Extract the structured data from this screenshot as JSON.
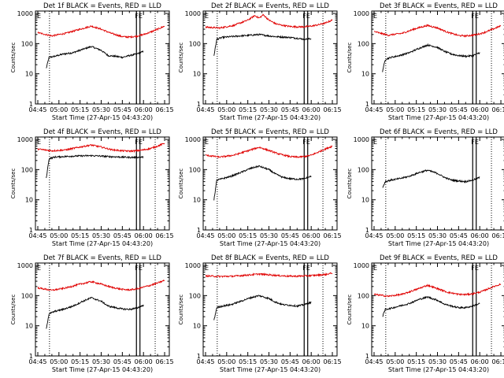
{
  "x_ticks": [
    "04:45",
    "05:00",
    "05:15",
    "05:30",
    "05:45",
    "06:00",
    "06:15"
  ],
  "y_ticks": [
    "1",
    "10",
    "100",
    "1000"
  ],
  "xlabel": "Start Time (27-Apr-15 04:43:20)",
  "ylabel": "Counts/sec",
  "colors": {
    "events": "#000000",
    "lld": "#e00000"
  },
  "chart_data": [
    {
      "type": "line",
      "title": "Det 1f BLACK = Events, RED = LLD",
      "marker_labels": [
        "E",
        "FE"
      ],
      "xlim_min": [
        -1.67,
        93.33
      ],
      "ylim": [
        1,
        1200
      ],
      "log_y": true,
      "vlines_dotted_min": [
        8.3,
        83.3
      ],
      "vlines_solid_min": [
        70,
        72.5
      ],
      "series": [
        {
          "x": [
            6,
            8,
            12,
            18,
            25,
            32,
            38,
            45,
            50,
            55,
            60,
            65,
            70,
            75
          ],
          "y": [
            15,
            35,
            38,
            45,
            50,
            65,
            80,
            60,
            40,
            38,
            35,
            40,
            45,
            55
          ]
        },
        {
          "x": [
            0,
            10,
            20,
            30,
            38,
            45,
            52,
            60,
            65,
            70,
            75,
            80,
            85,
            90
          ],
          "y": [
            230,
            180,
            220,
            300,
            380,
            300,
            220,
            170,
            165,
            175,
            200,
            240,
            300,
            380
          ]
        }
      ]
    },
    {
      "type": "line",
      "title": "Det 2f BLACK = Events, RED = LLD",
      "marker_labels": [
        "E",
        "FE"
      ],
      "xlim_min": [
        -1.67,
        93.33
      ],
      "ylim": [
        1,
        1200
      ],
      "log_y": true,
      "vlines_dotted_min": [
        8.3,
        83.3
      ],
      "vlines_solid_min": [
        70,
        72.5
      ],
      "series": [
        {
          "x": [
            6,
            8,
            12,
            18,
            25,
            32,
            38,
            45,
            50,
            55,
            60,
            65,
            70,
            75
          ],
          "y": [
            40,
            140,
            160,
            170,
            180,
            190,
            200,
            180,
            170,
            165,
            160,
            150,
            140,
            145
          ]
        },
        {
          "x": [
            0,
            10,
            20,
            30,
            35,
            38,
            41,
            45,
            50,
            55,
            60,
            65,
            70,
            75,
            80,
            85,
            90
          ],
          "y": [
            350,
            330,
            400,
            600,
            850,
            700,
            900,
            600,
            450,
            400,
            370,
            360,
            360,
            380,
            420,
            480,
            600
          ]
        }
      ]
    },
    {
      "type": "line",
      "title": "Det 3f BLACK = Events, RED = LLD",
      "marker_labels": [
        "E",
        "FE"
      ],
      "xlim_min": [
        -1.67,
        93.33
      ],
      "ylim": [
        1,
        1200
      ],
      "log_y": true,
      "vlines_dotted_min": [
        8.3,
        83.3
      ],
      "vlines_solid_min": [
        70,
        72.5
      ],
      "series": [
        {
          "x": [
            6,
            8,
            12,
            18,
            25,
            32,
            38,
            45,
            50,
            55,
            60,
            65,
            70,
            75
          ],
          "y": [
            12,
            30,
            35,
            40,
            50,
            70,
            90,
            75,
            55,
            45,
            40,
            38,
            40,
            50
          ]
        },
        {
          "x": [
            0,
            10,
            20,
            30,
            38,
            45,
            52,
            60,
            65,
            70,
            75,
            80,
            85,
            90
          ],
          "y": [
            250,
            190,
            220,
            320,
            400,
            330,
            240,
            185,
            180,
            190,
            210,
            250,
            310,
            390
          ]
        }
      ]
    },
    {
      "type": "line",
      "title": "Det 4f BLACK = Events, RED = LLD",
      "marker_labels": [
        "E",
        "FE"
      ],
      "xlim_min": [
        -1.67,
        93.33
      ],
      "ylim": [
        1,
        1200
      ],
      "log_y": true,
      "vlines_dotted_min": [
        8.3,
        83.3
      ],
      "vlines_solid_min": [
        70,
        72.5
      ],
      "series": [
        {
          "x": [
            6,
            8,
            12,
            18,
            25,
            32,
            38,
            45,
            50,
            55,
            60,
            65,
            70,
            75
          ],
          "y": [
            50,
            230,
            260,
            270,
            280,
            285,
            290,
            280,
            270,
            265,
            260,
            255,
            255,
            260
          ]
        },
        {
          "x": [
            0,
            10,
            20,
            30,
            38,
            45,
            52,
            60,
            65,
            70,
            75,
            80,
            85,
            90
          ],
          "y": [
            480,
            420,
            450,
            560,
            650,
            560,
            460,
            420,
            410,
            420,
            450,
            500,
            600,
            750
          ]
        }
      ]
    },
    {
      "type": "line",
      "title": "Det 5f BLACK = Events, RED = LLD",
      "marker_labels": [
        "E",
        "FE"
      ],
      "xlim_min": [
        -1.67,
        93.33
      ],
      "ylim": [
        1,
        1200
      ],
      "log_y": true,
      "vlines_dotted_min": [
        8.3,
        83.3
      ],
      "vlines_solid_min": [
        70,
        72.5
      ],
      "series": [
        {
          "x": [
            6,
            8,
            12,
            18,
            25,
            32,
            38,
            45,
            50,
            55,
            60,
            65,
            70,
            75
          ],
          "y": [
            10,
            45,
            50,
            60,
            80,
            110,
            130,
            100,
            70,
            55,
            50,
            48,
            50,
            60
          ]
        },
        {
          "x": [
            0,
            10,
            20,
            30,
            38,
            45,
            52,
            60,
            65,
            70,
            75,
            80,
            85,
            90
          ],
          "y": [
            300,
            260,
            300,
            420,
            550,
            430,
            330,
            270,
            260,
            270,
            300,
            380,
            480,
            600
          ]
        }
      ]
    },
    {
      "type": "line",
      "title": "Det 6f BLACK = Events, RED = LLD",
      "marker_labels": [
        "E",
        "FE"
      ],
      "xlim_min": [
        -1.67,
        93.33
      ],
      "ylim": [
        1,
        1200
      ],
      "log_y": true,
      "vlines_dotted_min": [
        8.3,
        83.3
      ],
      "vlines_solid_min": [
        70,
        72.5
      ],
      "series": [
        {
          "x": [
            6,
            8,
            12,
            18,
            25,
            32,
            38,
            45,
            50,
            55,
            60,
            65,
            70,
            75
          ],
          "y": [
            25,
            40,
            45,
            50,
            60,
            80,
            95,
            75,
            55,
            45,
            42,
            40,
            45,
            55
          ]
        }
      ]
    },
    {
      "type": "line",
      "title": "Det 7f BLACK = Events, RED = LLD",
      "marker_labels": [
        "E",
        "FE"
      ],
      "xlim_min": [
        -1.67,
        93.33
      ],
      "ylim": [
        1,
        1200
      ],
      "log_y": true,
      "vlines_dotted_min": [
        8.3,
        83.3
      ],
      "vlines_solid_min": [
        70,
        72.5
      ],
      "series": [
        {
          "x": [
            6,
            8,
            12,
            18,
            25,
            32,
            38,
            45,
            50,
            55,
            60,
            65,
            70,
            75
          ],
          "y": [
            8,
            25,
            30,
            35,
            45,
            65,
            85,
            65,
            45,
            40,
            36,
            35,
            38,
            48
          ]
        },
        {
          "x": [
            0,
            10,
            20,
            30,
            38,
            45,
            52,
            60,
            65,
            70,
            75,
            80,
            85,
            90
          ],
          "y": [
            180,
            150,
            180,
            240,
            290,
            240,
            190,
            160,
            155,
            165,
            190,
            220,
            260,
            320
          ]
        }
      ]
    },
    {
      "type": "line",
      "title": "Det 8f BLACK = Events, RED = LLD",
      "marker_labels": [
        "E",
        "FE"
      ],
      "xlim_min": [
        -1.67,
        93.33
      ],
      "ylim": [
        1,
        1200
      ],
      "log_y": true,
      "vlines_dotted_min": [
        8.3,
        83.3
      ],
      "vlines_solid_min": [
        70,
        72.5
      ],
      "series": [
        {
          "x": [
            6,
            8,
            12,
            18,
            25,
            32,
            38,
            45,
            50,
            55,
            60,
            65,
            70,
            75
          ],
          "y": [
            15,
            40,
            45,
            50,
            65,
            85,
            100,
            80,
            60,
            50,
            48,
            45,
            50,
            60
          ]
        },
        {
          "x": [
            0,
            10,
            20,
            30,
            38,
            45,
            52,
            60,
            65,
            70,
            75,
            80,
            85,
            90
          ],
          "y": [
            450,
            430,
            440,
            480,
            520,
            490,
            460,
            440,
            440,
            450,
            460,
            480,
            500,
            560
          ]
        }
      ]
    },
    {
      "type": "line",
      "title": "Det 9f BLACK = Events, RED = LLD",
      "marker_labels": [
        "E",
        "FE"
      ],
      "xlim_min": [
        -1.67,
        93.33
      ],
      "ylim": [
        1,
        1200
      ],
      "log_y": true,
      "vlines_dotted_min": [
        8.3,
        83.3
      ],
      "vlines_solid_min": [
        70,
        72.5
      ],
      "series": [
        {
          "x": [
            6,
            8,
            12,
            18,
            25,
            32,
            38,
            45,
            50,
            55,
            60,
            65,
            70,
            75
          ],
          "y": [
            20,
            35,
            38,
            45,
            55,
            75,
            90,
            70,
            52,
            45,
            40,
            40,
            45,
            55
          ]
        },
        {
          "x": [
            0,
            10,
            20,
            30,
            38,
            45,
            52,
            60,
            65,
            70,
            75,
            80,
            85,
            90
          ],
          "y": [
            110,
            95,
            110,
            160,
            220,
            170,
            130,
            110,
            108,
            115,
            130,
            160,
            200,
            240
          ]
        }
      ]
    }
  ]
}
